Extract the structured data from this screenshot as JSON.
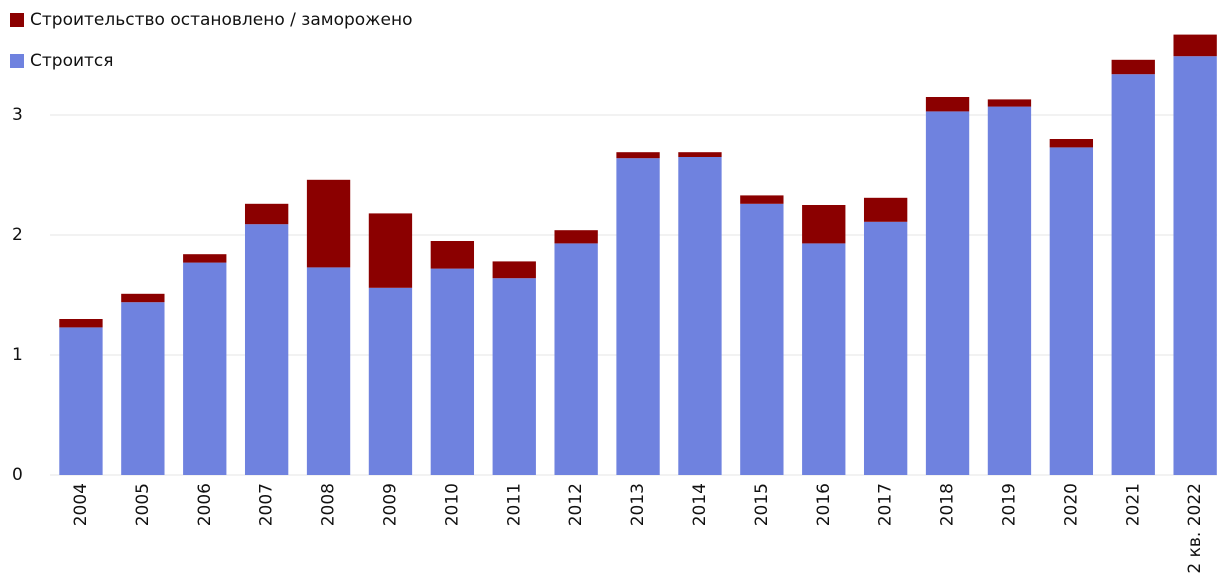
{
  "chart_data": {
    "type": "stacked_bar",
    "categories": [
      "2004",
      "2005",
      "2006",
      "2007",
      "2008",
      "2009",
      "2010",
      "2011",
      "2012",
      "2013",
      "2014",
      "2015",
      "2016",
      "2017",
      "2018",
      "2019",
      "2020",
      "2021",
      "2 кв. 2022"
    ],
    "series": [
      {
        "name": "Строится",
        "color": "#6f82df",
        "values": [
          1.23,
          1.44,
          1.77,
          2.09,
          1.73,
          1.56,
          1.72,
          1.64,
          1.93,
          2.64,
          2.65,
          2.26,
          1.93,
          2.11,
          3.03,
          3.07,
          2.73,
          3.34,
          3.49
        ]
      },
      {
        "name": "Строительство остановлено / заморожено",
        "color": "#8b0000",
        "values": [
          0.07,
          0.07,
          0.07,
          0.17,
          0.73,
          0.62,
          0.23,
          0.14,
          0.11,
          0.05,
          0.04,
          0.07,
          0.32,
          0.2,
          0.12,
          0.06,
          0.07,
          0.12,
          0.18
        ]
      }
    ],
    "ylim": [
      0,
      3.8
    ],
    "yticks": [
      0,
      1,
      2,
      3
    ],
    "grid": true
  }
}
